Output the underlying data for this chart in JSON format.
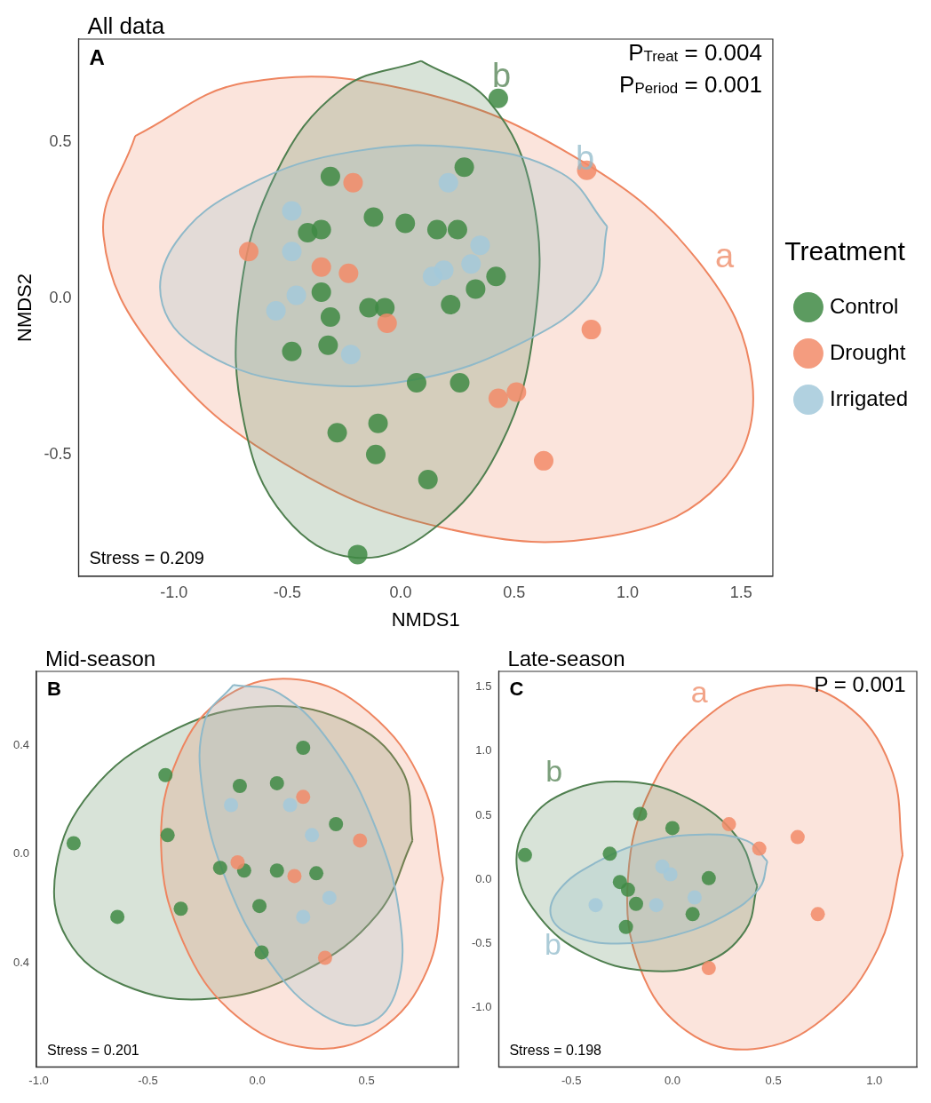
{
  "chart_data": [
    {
      "type": "scatter",
      "title": "All data",
      "xlabel": "NMDS1",
      "ylabel": "NMDS2",
      "legend_title": "Treatment",
      "legend": "right",
      "grid": false,
      "marker": "circle",
      "xlim": [
        -1.42,
        1.64
      ],
      "ylim": [
        -0.89,
        0.83
      ],
      "xticks": [
        {
          "value": -1,
          "label": "-1.0"
        },
        {
          "value": -0.5,
          "label": "-0.5"
        },
        {
          "value": 0,
          "label": "0.0"
        },
        {
          "value": 0.5,
          "label": "0.5"
        },
        {
          "value": 1,
          "label": "1.0"
        },
        {
          "value": 1.5,
          "label": "1.5"
        }
      ],
      "yticks": [
        {
          "value": -0.5,
          "label": "-0.5"
        },
        {
          "value": 0,
          "label": "0.0"
        },
        {
          "value": 0.5,
          "label": "0.5"
        }
      ],
      "annotations": [
        "A",
        "Stress = 0.209",
        "P$_{Treat}$ = 0.004",
        "P$_{Period}$ = 0.001",
        {
          "text": "b",
          "x": 0.39,
          "y": 0.63
        },
        {
          "text": "b",
          "x": 0.71,
          "y": 0.4
        },
        {
          "text": "a",
          "x": 1.31,
          "y": 0.12
        }
      ],
      "series": [
        {
          "type": "area",
          "marker": "none",
          "color": "#ee8560",
          "x": [
            -1.17,
            -0.69,
            0.02,
            0.75,
            1.31,
            1.55,
            1.41,
            0.93,
            0.22,
            -0.51,
            -1.07,
            -1.31,
            -1.17
          ],
          "values": [
            0.52,
            0.69,
            0.67,
            0.46,
            0.12,
            -0.27,
            -0.59,
            -0.76,
            -0.74,
            -0.53,
            -0.18,
            0.2,
            0.52
          ]
        },
        {
          "type": "area",
          "marker": "none",
          "color": "#4f7f4f",
          "x": [
            0.09,
            0.39,
            0.58,
            0.59,
            0.44,
            0.14,
            -0.2,
            -0.51,
            -0.69,
            -0.71,
            -0.55,
            -0.26,
            0.09
          ],
          "values": [
            0.76,
            0.63,
            0.33,
            -0.08,
            -0.47,
            -0.74,
            -0.83,
            -0.7,
            -0.4,
            0,
            0.4,
            0.67,
            0.76
          ]
        },
        {
          "type": "area",
          "marker": "none",
          "color": "#8fb9c9",
          "x": [
            0.91,
            0.85,
            0.54,
            0.06,
            -0.45,
            -0.85,
            -1.05,
            -0.99,
            -0.68,
            -0.21,
            0.3,
            0.71,
            0.91
          ],
          "values": [
            0.23,
            0.03,
            -0.14,
            -0.26,
            -0.27,
            -0.18,
            -0.02,
            0.18,
            0.36,
            0.47,
            0.48,
            0.4,
            0.23
          ]
        },
        {
          "type": "scatter",
          "name": "Control",
          "color": "#3f8a44",
          "x": [
            0.43,
            -0.31,
            0.28,
            -0.41,
            -0.35,
            -0.12,
            0.02,
            0.16,
            0.25,
            0.42,
            0.33,
            -0.35,
            0.22,
            -0.31,
            -0.14,
            -0.07,
            -0.48,
            -0.32,
            0.07,
            0.26,
            -0.28,
            -0.1,
            -0.11,
            0.12,
            -0.19
          ],
          "values": [
            0.64,
            0.39,
            0.42,
            0.21,
            0.22,
            0.26,
            0.24,
            0.22,
            0.22,
            0.07,
            0.03,
            0.02,
            -0.02,
            -0.06,
            -0.03,
            -0.03,
            -0.17,
            -0.15,
            -0.27,
            -0.27,
            -0.43,
            -0.4,
            -0.5,
            -0.58,
            -0.82
          ]
        },
        {
          "type": "scatter",
          "name": "Drought",
          "color": "#f28b68",
          "x": [
            -0.21,
            0.82,
            -0.67,
            -0.35,
            -0.23,
            -0.06,
            0.84,
            0.43,
            0.51,
            0.63
          ],
          "values": [
            0.37,
            0.41,
            0.15,
            0.1,
            0.08,
            -0.08,
            -0.1,
            -0.32,
            -0.3,
            -0.52
          ]
        },
        {
          "type": "scatter",
          "name": "Irrigated",
          "color": "#a3c9da",
          "x": [
            0.21,
            -0.48,
            -0.48,
            0.35,
            0.31,
            0.19,
            0.14,
            -0.46,
            -0.55,
            -0.22
          ],
          "values": [
            0.37,
            0.28,
            0.15,
            0.17,
            0.11,
            0.09,
            0.07,
            0.01,
            -0.04,
            -0.18
          ]
        }
      ]
    },
    {
      "type": "scatter",
      "title": "Mid-season",
      "grid": false,
      "marker": "circle",
      "xlim": [
        -1.01,
        0.92
      ],
      "ylim": [
        -0.78,
        0.67
      ],
      "xticks": [
        {
          "value": -1,
          "label": "-1.0"
        },
        {
          "value": -0.5,
          "label": "-0.5"
        },
        {
          "value": 0,
          "label": "0.0"
        },
        {
          "value": 0.5,
          "label": "0.5"
        }
      ],
      "yticks": [
        {
          "value": 0.4,
          "label": "0.4"
        },
        {
          "value": 0,
          "label": "0.0"
        },
        {
          "value": -0.4,
          "label": "0.4"
        }
      ],
      "annotations": [
        "B",
        "Stress = 0.201"
      ],
      "series": [
        {
          "type": "area",
          "marker": "none",
          "color": "#4f7f4f",
          "x": [
            0.71,
            0.66,
            0.4,
            0,
            -0.42,
            -0.76,
            -0.92,
            -0.87,
            -0.61,
            -0.21,
            0.21,
            0.55,
            0.71
          ],
          "values": [
            0.05,
            0.31,
            0.49,
            0.54,
            0.44,
            0.23,
            -0.05,
            -0.31,
            -0.48,
            -0.53,
            -0.43,
            -0.22,
            0.05
          ]
        },
        {
          "type": "area",
          "marker": "none",
          "color": "#ee8560",
          "x": [
            0.85,
            0.76,
            0.51,
            0.19,
            -0.14,
            -0.36,
            -0.44,
            -0.34,
            -0.1,
            0.23,
            0.55,
            0.78,
            0.85
          ],
          "values": [
            -0.09,
            0.25,
            0.52,
            0.64,
            0.58,
            0.36,
            0.03,
            -0.32,
            -0.59,
            -0.71,
            -0.65,
            -0.42,
            -0.09
          ]
        },
        {
          "type": "area",
          "marker": "none",
          "color": "#8fb9c9",
          "x": [
            -0.11,
            0.1,
            0.34,
            0.54,
            0.65,
            0.64,
            0.51,
            0.3,
            0.06,
            -0.14,
            -0.25,
            -0.24,
            -0.11
          ],
          "values": [
            0.62,
            0.59,
            0.4,
            0.1,
            -0.22,
            -0.49,
            -0.62,
            -0.59,
            -0.4,
            -0.1,
            0.23,
            0.49,
            0.62
          ]
        },
        {
          "type": "scatter",
          "color": "#3f8a44",
          "x": [
            -0.84,
            -0.42,
            -0.41,
            -0.64,
            -0.35,
            0.21,
            -0.08,
            0.09,
            0.36,
            -0.17,
            -0.06,
            0.09,
            0.27,
            0.01,
            0.02
          ],
          "values": [
            0.04,
            0.29,
            0.07,
            -0.23,
            -0.2,
            0.39,
            0.25,
            0.26,
            0.11,
            -0.05,
            -0.06,
            -0.06,
            -0.07,
            -0.19,
            -0.36
          ]
        },
        {
          "type": "scatter",
          "color": "#f28b68",
          "x": [
            0.21,
            0.47,
            -0.09,
            0.17,
            0.31
          ],
          "values": [
            0.21,
            0.05,
            -0.03,
            -0.08,
            -0.38
          ]
        },
        {
          "type": "scatter",
          "color": "#a3c9da",
          "x": [
            -0.12,
            0.15,
            0.25,
            0.33,
            0.21
          ],
          "values": [
            0.18,
            0.18,
            0.07,
            -0.16,
            -0.23
          ]
        }
      ]
    },
    {
      "type": "scatter",
      "title": "Late-season",
      "grid": false,
      "marker": "circle",
      "xlim": [
        -0.86,
        1.21
      ],
      "ylim": [
        -1.46,
        1.62
      ],
      "xticks": [
        {
          "value": -0.5,
          "label": "-0.5"
        },
        {
          "value": 0,
          "label": "0.0"
        },
        {
          "value": 0.5,
          "label": "0.5"
        },
        {
          "value": 1,
          "label": "1.0"
        }
      ],
      "yticks": [
        {
          "value": -1,
          "label": "-1.0"
        },
        {
          "value": -0.5,
          "label": "-0.5"
        },
        {
          "value": 0,
          "label": "0.0"
        },
        {
          "value": 0.5,
          "label": "0.5"
        },
        {
          "value": 1,
          "label": "1.0"
        },
        {
          "value": 1.5,
          "label": "1.5"
        }
      ],
      "annotations": [
        "C",
        "Stress = 0.198",
        "P = 0.001",
        {
          "text": "a",
          "x": 0.18,
          "y": 1.28
        },
        {
          "text": "b",
          "x": -0.51,
          "y": 0.69
        },
        {
          "text": "b",
          "x": -0.49,
          "y": -0.44
        }
      ],
      "series": [
        {
          "type": "area",
          "marker": "none",
          "color": "#ee8560",
          "x": [
            1.14,
            1.08,
            0.85,
            0.52,
            0.18,
            -0.1,
            -0.22,
            -0.16,
            0.07,
            0.4,
            0.75,
            1.02,
            1.14
          ],
          "values": [
            0.19,
            0.88,
            1.37,
            1.51,
            1.28,
            0.73,
            0.01,
            -0.69,
            -1.18,
            -1.32,
            -1.08,
            -0.53,
            0.19
          ]
        },
        {
          "type": "area",
          "marker": "none",
          "color": "#4f7f4f",
          "x": [
            0.42,
            0.32,
            0.08,
            -0.22,
            -0.51,
            -0.71,
            -0.77,
            -0.66,
            -0.43,
            -0.13,
            0.16,
            0.36,
            0.42
          ],
          "values": [
            -0.05,
            0.33,
            0.63,
            0.76,
            0.69,
            0.45,
            0.09,
            -0.29,
            -0.58,
            -0.71,
            -0.65,
            -0.4,
            -0.05
          ]
        },
        {
          "type": "area",
          "marker": "none",
          "color": "#8fb9c9",
          "x": [
            0.47,
            0.43,
            0.26,
            0,
            -0.27,
            -0.49,
            -0.6,
            -0.56,
            -0.38,
            -0.13,
            0.15,
            0.37,
            0.47
          ],
          "values": [
            0.14,
            -0.07,
            -0.28,
            -0.44,
            -0.5,
            -0.44,
            -0.29,
            -0.08,
            0.13,
            0.29,
            0.35,
            0.3,
            0.14
          ]
        },
        {
          "type": "scatter",
          "color": "#3f8a44",
          "x": [
            -0.73,
            -0.16,
            0,
            -0.31,
            -0.26,
            -0.22,
            -0.18,
            -0.23,
            0.18,
            0.1
          ],
          "values": [
            0.19,
            0.51,
            0.4,
            0.2,
            -0.02,
            -0.08,
            -0.19,
            -0.37,
            0.01,
            -0.27
          ]
        },
        {
          "type": "scatter",
          "color": "#f28b68",
          "x": [
            0.28,
            0.43,
            0.62,
            0.72,
            0.18
          ],
          "values": [
            0.43,
            0.24,
            0.33,
            -0.27,
            -0.69
          ]
        },
        {
          "type": "scatter",
          "color": "#a3c9da",
          "x": [
            -0.38,
            -0.05,
            -0.01,
            -0.08,
            0.11
          ],
          "values": [
            -0.2,
            0.1,
            0.04,
            -0.2,
            -0.14
          ]
        }
      ]
    }
  ]
}
